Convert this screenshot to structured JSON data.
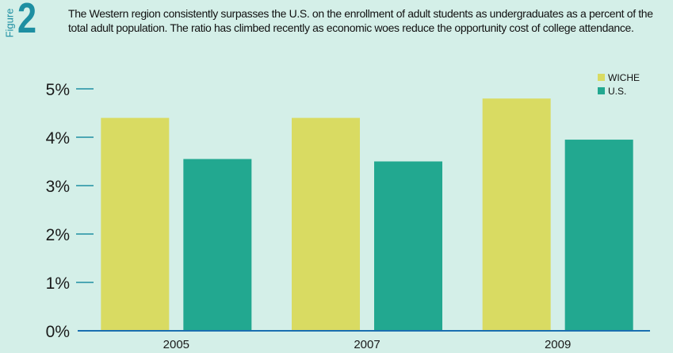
{
  "figure": {
    "label": "Figure",
    "number": "2",
    "caption": "The Western region consistently surpasses the U.S. on the enrollment of adult students as undergraduates as a percent of the total adult population. The ratio has climbed recently as economic woes reduce the opportunity cost of college attendance."
  },
  "chart_data": {
    "type": "bar",
    "categories": [
      "2005",
      "2007",
      "2009"
    ],
    "series": [
      {
        "name": "WICHE",
        "values": [
          4.4,
          4.4,
          4.8
        ],
        "color": "#d9db62"
      },
      {
        "name": "U.S.",
        "values": [
          3.55,
          3.5,
          3.95
        ],
        "color": "#22a890"
      }
    ],
    "yticks": [
      "0%",
      "1%",
      "2%",
      "3%",
      "4%",
      "5%"
    ],
    "ylim": [
      0,
      5
    ],
    "legend_position": "top-right",
    "axis_color": "#1a6fb0",
    "tick_color": "#1e8fa2"
  }
}
